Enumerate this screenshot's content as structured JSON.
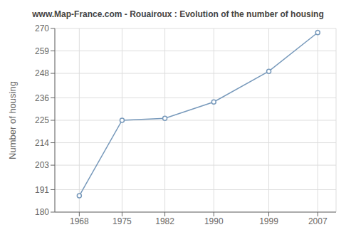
{
  "chart_data": {
    "type": "line",
    "title": "www.Map-France.com - Rouairoux : Evolution of the number of housing",
    "ylabel": "Number of housing",
    "x": [
      1968,
      1975,
      1982,
      1990,
      1999,
      2007
    ],
    "values": [
      188,
      225,
      226,
      234,
      249,
      268
    ],
    "color": "#7799bb",
    "marker": "circle",
    "xlim": [
      1964,
      2010
    ],
    "xticks": [
      1968,
      1975,
      1982,
      1990,
      1999,
      2007
    ],
    "ylim": [
      180,
      270
    ],
    "yticks": [
      180,
      191,
      203,
      214,
      225,
      236,
      248,
      259,
      270
    ],
    "grid": true
  }
}
